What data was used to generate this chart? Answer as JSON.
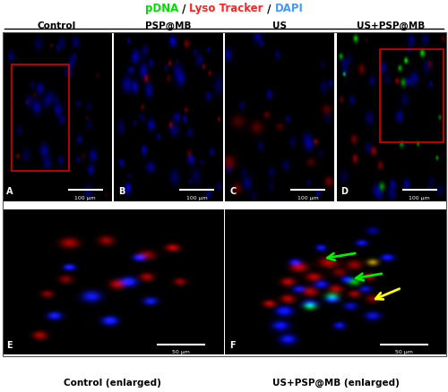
{
  "title_parts": [
    "pDNA",
    " / ",
    "Lyso Tracker",
    " / ",
    "DAPI"
  ],
  "title_colors": [
    "#00dd00",
    "#000000",
    "#ff2222",
    "#000000",
    "#4499ff"
  ],
  "top_labels": [
    "Control",
    "PSP@MB",
    "US",
    "US+PSP@MB"
  ],
  "panel_labels": [
    "A",
    "B",
    "C",
    "D",
    "E",
    "F"
  ],
  "bottom_labels": [
    "Control (enlarged)",
    "US+PSP@MB (enlarged)"
  ],
  "scale_bar_top": "100 μm",
  "scale_bar_bottom": "50 μm",
  "outer_bg": "#ffffff"
}
